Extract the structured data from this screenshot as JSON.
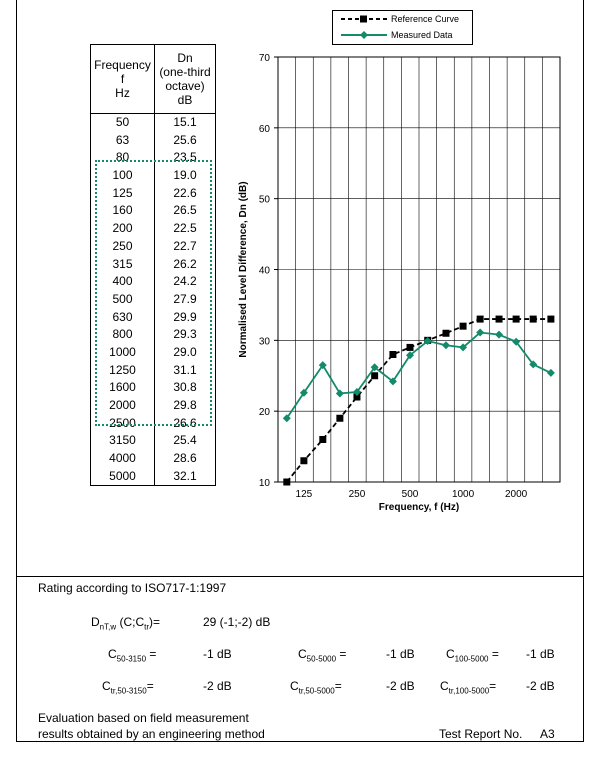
{
  "table": {
    "header_freq": [
      "Frequency",
      "f",
      "Hz"
    ],
    "header_dn": [
      "Dn",
      "(one-third",
      "octave)",
      "dB"
    ],
    "rows": [
      {
        "f": "50",
        "dn": "15.1"
      },
      {
        "f": "63",
        "dn": "25.6"
      },
      {
        "f": "80",
        "dn": "23.5"
      },
      {
        "f": "100",
        "dn": "19.0"
      },
      {
        "f": "125",
        "dn": "22.6"
      },
      {
        "f": "160",
        "dn": "26.5"
      },
      {
        "f": "200",
        "dn": "22.5"
      },
      {
        "f": "250",
        "dn": "22.7"
      },
      {
        "f": "315",
        "dn": "26.2"
      },
      {
        "f": "400",
        "dn": "24.2"
      },
      {
        "f": "500",
        "dn": "27.9"
      },
      {
        "f": "630",
        "dn": "29.9"
      },
      {
        "f": "800",
        "dn": "29.3"
      },
      {
        "f": "1000",
        "dn": "29.0"
      },
      {
        "f": "1250",
        "dn": "31.1"
      },
      {
        "f": "1600",
        "dn": "30.8"
      },
      {
        "f": "2000",
        "dn": "29.8"
      },
      {
        "f": "2500",
        "dn": "26.6"
      },
      {
        "f": "3150",
        "dn": "25.4"
      },
      {
        "f": "4000",
        "dn": "28.6"
      },
      {
        "f": "5000",
        "dn": "32.1"
      }
    ]
  },
  "chart_data": {
    "type": "line",
    "x": [
      100,
      125,
      160,
      200,
      250,
      315,
      400,
      500,
      630,
      800,
      1000,
      1250,
      1600,
      2000,
      2500,
      3150
    ],
    "x_tick_labels": [
      "125",
      "250",
      "500",
      "1000",
      "2000"
    ],
    "x_tick_values": [
      125,
      250,
      500,
      1000,
      2000
    ],
    "xlabel": "Frequency, f (Hz)",
    "ylabel": "Normalised Level Difference, Dn (dB)",
    "ylim": [
      10,
      70
    ],
    "y_ticks": [
      10,
      20,
      30,
      40,
      50,
      60,
      70
    ],
    "x_scale": "log",
    "grid": true,
    "legend_position": "top-right",
    "series": [
      {
        "name": "Reference Curve",
        "color": "#000000",
        "style": "dashed",
        "marker": "square",
        "values": [
          10,
          13,
          16,
          19,
          22,
          25,
          28,
          29,
          30,
          31,
          32,
          33,
          33,
          33,
          33,
          33
        ]
      },
      {
        "name": "Measured Data",
        "color": "#138a6a",
        "style": "solid",
        "marker": "diamond",
        "values": [
          19.0,
          22.6,
          26.5,
          22.5,
          22.7,
          26.2,
          24.2,
          27.9,
          29.9,
          29.3,
          29.0,
          31.1,
          30.8,
          29.8,
          26.6,
          25.4
        ]
      }
    ]
  },
  "rating": {
    "title": "Rating according to ISO717-1:1997",
    "dntw_main": "D",
    "dntw_sub": "nT,w",
    "dntw_rest": " (C;C",
    "dntw_tr": "tr",
    "dntw_end": ")=",
    "dntw_value": "29 (-1;-2) dB",
    "c_label": "C",
    "ctr_label": "C",
    "sub_50_3150": "50-3150",
    "sub_50_5000": "50-5000",
    "sub_100_5000": "100-5000",
    "sub_tr_50_3150": "tr,50-3150",
    "sub_tr_50_5000": "tr,50-5000",
    "sub_tr_100_5000": "tr,100-5000",
    "eq": " =",
    "eq2": "=",
    "c1": "-1 dB",
    "c2": "-1 dB",
    "c3": "-1 dB",
    "ctr1": "-2 dB",
    "ctr2": "-2 dB",
    "ctr3": "-2 dB",
    "eval_line1": "Evaluation based on field measurement",
    "eval_line2": "results obtained by an engineering method",
    "report_label": "Test Report No.",
    "report_no": "A3"
  }
}
